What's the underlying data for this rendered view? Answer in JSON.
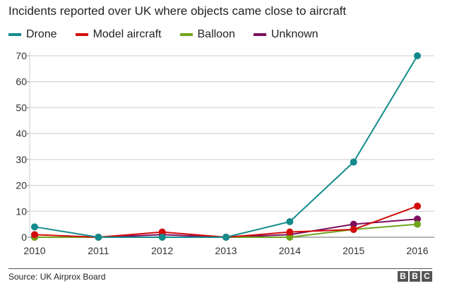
{
  "chart_data": {
    "type": "line",
    "title": "Incidents reported over UK where objects came close to aircraft",
    "xlabel": "",
    "ylabel": "",
    "x": [
      "2010",
      "2011",
      "2012",
      "2013",
      "2014",
      "2015",
      "2016"
    ],
    "ylim": [
      0,
      70
    ],
    "yticks": [
      0,
      10,
      20,
      30,
      40,
      50,
      60,
      70
    ],
    "ytick_labels": [
      "0",
      "10",
      "20",
      "30",
      "40",
      "50",
      "60",
      "70"
    ],
    "grid": true,
    "legend_position": "top-left",
    "series": [
      {
        "name": "Unknown",
        "color": "#7b0f5e",
        "values": [
          0,
          0,
          1,
          0,
          1,
          5,
          7
        ]
      },
      {
        "name": "Balloon",
        "color": "#6fa51b",
        "values": [
          0,
          0,
          0,
          0,
          0,
          3,
          5
        ]
      },
      {
        "name": "Model aircraft",
        "color": "#d40c0c",
        "values": [
          1,
          0,
          2,
          0,
          2,
          3,
          12
        ]
      },
      {
        "name": "Drone",
        "color": "#138b8c",
        "values": [
          4,
          0,
          0,
          0,
          6,
          29,
          70
        ]
      }
    ],
    "legend_order": [
      "Drone",
      "Model aircraft",
      "Balloon",
      "Unknown"
    ]
  },
  "footer": {
    "source": "Source: UK Airprox Board",
    "logo": "BBC",
    "logo_letters": [
      "B",
      "B",
      "C"
    ]
  }
}
